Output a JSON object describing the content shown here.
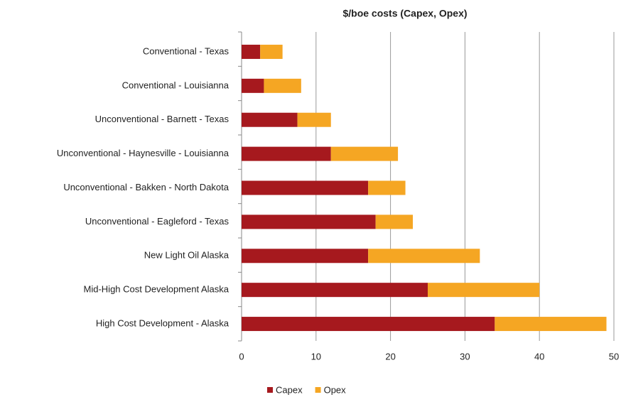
{
  "chart_data": {
    "type": "bar",
    "orientation": "horizontal",
    "stacked": true,
    "title": "$/boe costs (Capex, Opex)",
    "categories": [
      "Conventional - Texas",
      "Conventional - Louisianna",
      "Unconventional - Barnett - Texas",
      "Unconventional - Haynesville - Louisianna",
      "Unconventional - Bakken - North Dakota",
      "Unconventional - Eagleford - Texas",
      "New Light Oil Alaska",
      "Mid-High Cost Development Alaska",
      "High Cost Development - Alaska"
    ],
    "series": [
      {
        "name": "Capex",
        "color": "#a6191e",
        "values": [
          2.5,
          3,
          7.5,
          12,
          17,
          18,
          17,
          25,
          34
        ]
      },
      {
        "name": "Opex",
        "color": "#f5a623",
        "values": [
          3,
          5,
          4.5,
          9,
          5,
          5,
          15,
          15,
          15
        ]
      }
    ],
    "xlim": [
      0,
      50
    ],
    "xticks": [
      0,
      10,
      20,
      30,
      40,
      50
    ],
    "grid": true,
    "legend": "bottom"
  }
}
